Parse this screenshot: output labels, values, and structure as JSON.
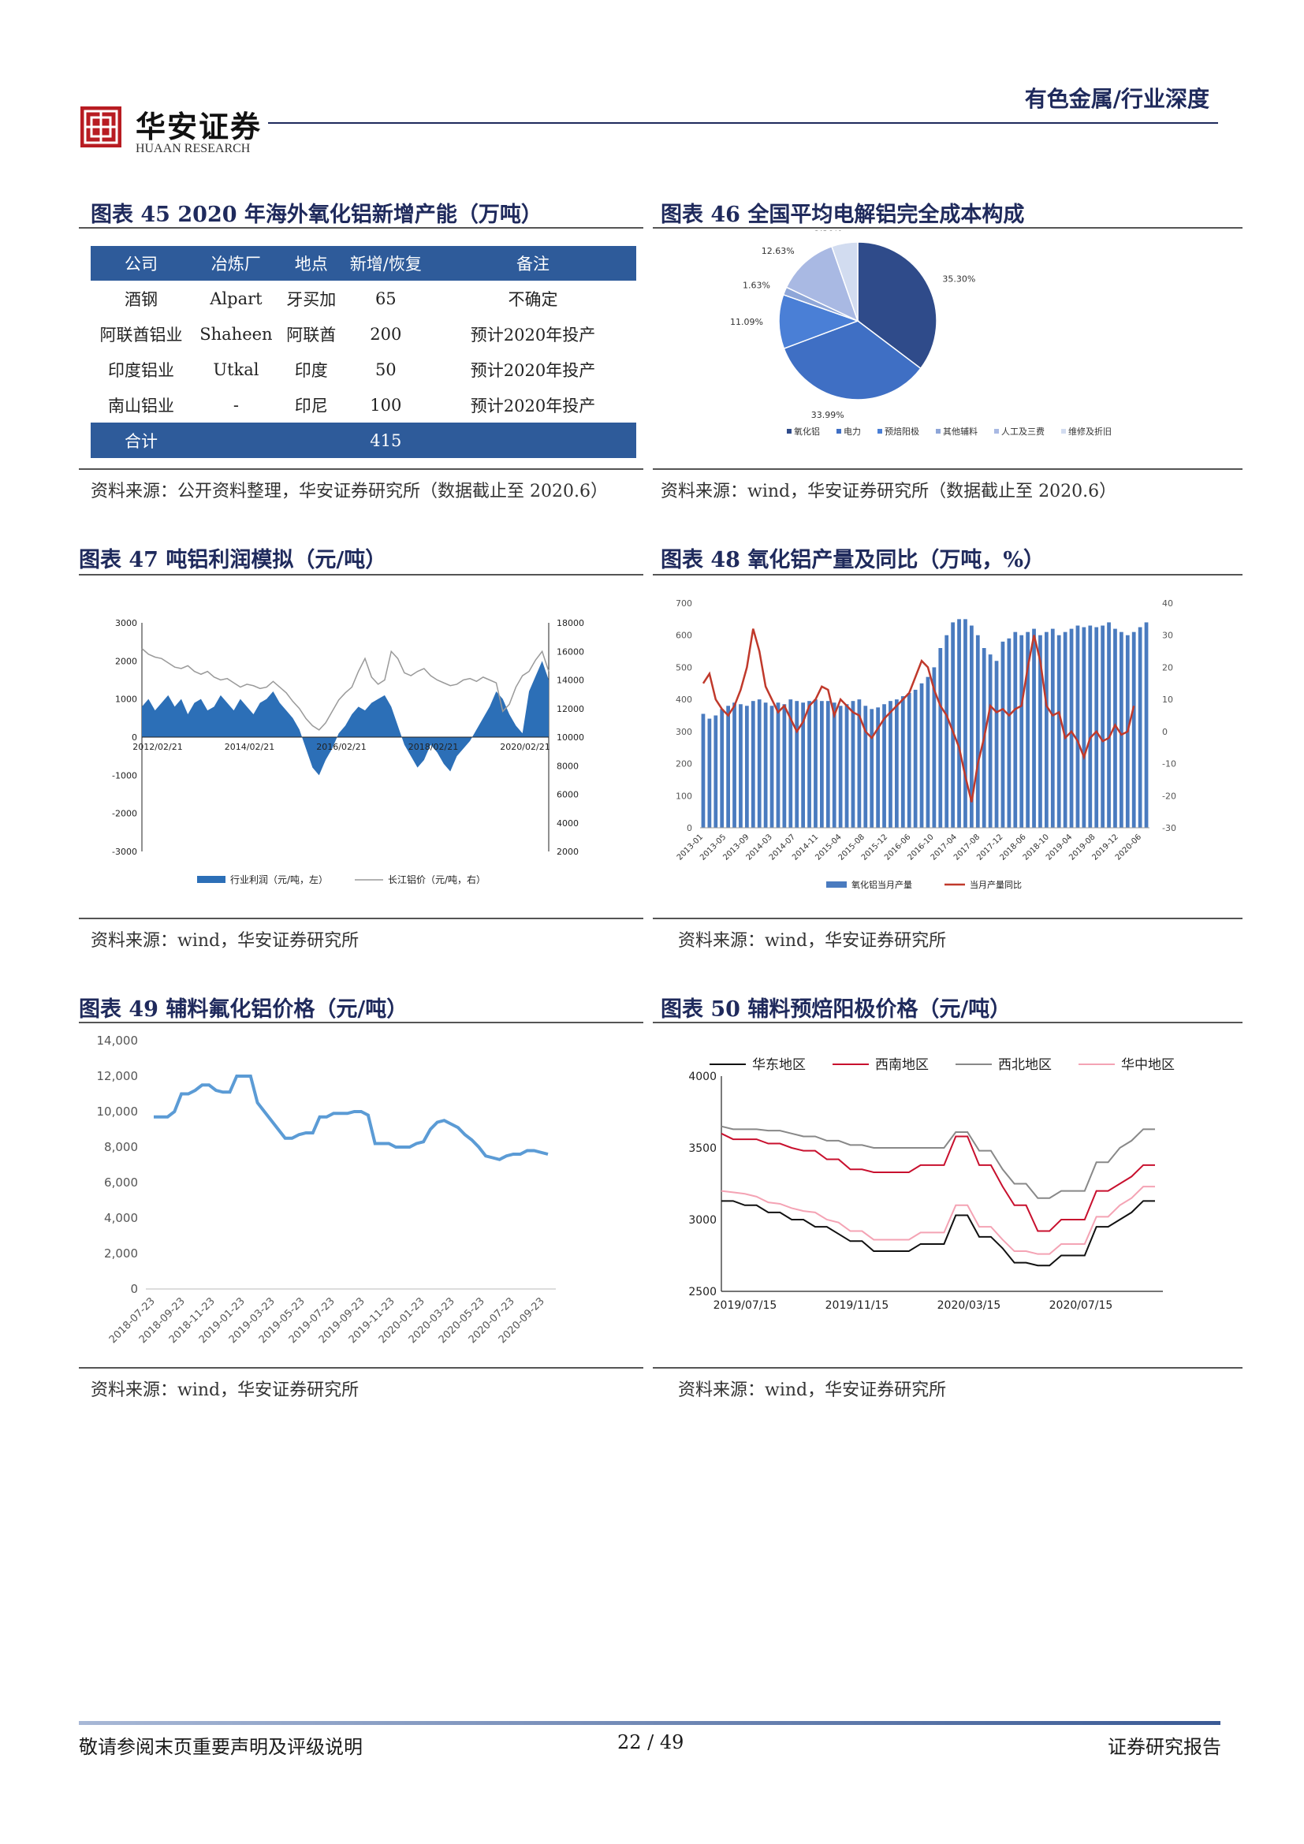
{
  "header": {
    "logo_cn": "华安证券",
    "logo_en": "HUAAN RESEARCH",
    "section": "有色金属/行业深度"
  },
  "fig45": {
    "title": "图表 45   2020 年海外氧化铝新增产能（万吨）",
    "columns": [
      "公司",
      "冶炼厂",
      "地点",
      "新增/恢复",
      "备注"
    ],
    "rows": [
      [
        "酒钢",
        "Alpart",
        "牙买加",
        "65",
        "不确定"
      ],
      [
        "阿联酋铝业",
        "Shaheen",
        "阿联酋",
        "200",
        "预计2020年投产"
      ],
      [
        "印度铝业",
        "Utkal",
        "印度",
        "50",
        "预计2020年投产"
      ],
      [
        "南山铝业",
        "-",
        "印尼",
        "100",
        "预计2020年投产"
      ]
    ],
    "total": [
      "合计",
      "",
      "",
      "415",
      ""
    ],
    "source": "资料来源：公开资料整理，华安证券研究所（数据截止至 2020.6）"
  },
  "fig46": {
    "title": "图表 46  全国平均电解铝完全成本构成",
    "source": "资料来源：wind，华安证券研究所（数据截止至 2020.6）",
    "chart_data": {
      "type": "pie",
      "categories": [
        "氧化铝",
        "电力",
        "预焙阳极",
        "其他辅料",
        "人工及三费",
        "维修及折旧"
      ],
      "values": [
        35.3,
        33.99,
        11.09,
        1.63,
        12.63,
        5.36
      ],
      "labels": [
        "35.30%",
        "33.99%",
        "11.09%",
        "1.63%",
        "12.63%",
        "5.36%"
      ],
      "colors": [
        "#2f4b8a",
        "#3f6fc4",
        "#4a7fd6",
        "#8ea6d8",
        "#a9b9e3",
        "#d2dcf0"
      ],
      "legend": "bottom"
    }
  },
  "fig47": {
    "title": "图表 47  吨铝利润模拟（元/吨）",
    "source": "资料来源：wind，华安证券研究所",
    "chart_data": {
      "type": "area",
      "x_ticks": [
        "2012/02/21",
        "2014/02/21",
        "2016/02/21",
        "2018/02/21",
        "2020/02/21"
      ],
      "y_left_ticks": [
        "3000",
        "2000",
        "1000",
        "0",
        "-1000",
        "-2000",
        "-3000"
      ],
      "y_right_ticks": [
        "18000",
        "16000",
        "14000",
        "12000",
        "10000",
        "8000",
        "6000",
        "4000",
        "2000"
      ],
      "ylim_left": [
        -3000,
        3000
      ],
      "ylim_right": [
        2000,
        18000
      ],
      "series": [
        {
          "name": "行业利润（元/吨，左）",
          "axis": "left",
          "color": "#2c6fb7",
          "values": [
            800,
            1000,
            700,
            900,
            1100,
            800,
            1000,
            600,
            900,
            1000,
            700,
            800,
            1100,
            900,
            700,
            1000,
            800,
            600,
            900,
            1000,
            1200,
            900,
            700,
            500,
            200,
            -300,
            -800,
            -1000,
            -600,
            -300,
            100,
            300,
            600,
            800,
            700,
            900,
            1000,
            1100,
            800,
            300,
            -200,
            -500,
            -800,
            -600,
            -200,
            -400,
            -700,
            -900,
            -500,
            -300,
            -100,
            200,
            500,
            800,
            1200,
            1000,
            600,
            300,
            100,
            1200,
            1600,
            2000,
            1500
          ]
        },
        {
          "name": "长江铝价（元/吨，右）",
          "axis": "right",
          "color": "#9a9a9a",
          "values": [
            16200,
            15800,
            15600,
            15500,
            15200,
            14900,
            14800,
            15000,
            14600,
            14400,
            14600,
            14200,
            14000,
            14100,
            13800,
            13500,
            13700,
            13600,
            13400,
            13500,
            13900,
            13500,
            13100,
            12500,
            12000,
            11300,
            10800,
            10500,
            11000,
            11800,
            12600,
            13100,
            13500,
            14600,
            15500,
            14200,
            13700,
            14000,
            16000,
            15500,
            14500,
            14300,
            14600,
            14800,
            14300,
            14000,
            13800,
            13600,
            13700,
            14000,
            14100,
            13900,
            14200,
            14000,
            13800,
            11800,
            12300,
            13500,
            14300,
            14600,
            15400,
            16000,
            14600
          ]
        }
      ],
      "legend": "bottom"
    }
  },
  "fig48": {
    "title": "图表 48  氧化铝产量及同比（万吨，%）",
    "source": "资料来源：wind，华安证券研究所",
    "chart_data": {
      "type": "bar",
      "x_ticks": [
        "2013-01",
        "2013-05",
        "2013-09",
        "2014-03",
        "2014-07",
        "2014-11",
        "2015-04",
        "2015-08",
        "2015-12",
        "2016-06",
        "2016-10",
        "2017-04",
        "2017-08",
        "2017-12",
        "2018-06",
        "2018-10",
        "2019-04",
        "2019-08",
        "2019-12",
        "2020-06"
      ],
      "y_left_ticks": [
        "700",
        "600",
        "500",
        "400",
        "300",
        "200",
        "100",
        "0"
      ],
      "y_right_ticks": [
        "40",
        "30",
        "20",
        "10",
        "0",
        "-10",
        "-20",
        "-30"
      ],
      "ylim_left": [
        0,
        700
      ],
      "ylim_right": [
        -30,
        40
      ],
      "series": [
        {
          "name": "氧化铝当月产量",
          "axis": "left",
          "color": "#4a7bbf",
          "values": [
            355,
            340,
            350,
            370,
            380,
            390,
            385,
            380,
            395,
            400,
            390,
            380,
            390,
            385,
            400,
            395,
            390,
            395,
            400,
            395,
            395,
            390,
            380,
            385,
            395,
            400,
            380,
            370,
            375,
            385,
            395,
            400,
            410,
            420,
            430,
            450,
            470,
            500,
            560,
            600,
            640,
            650,
            650,
            630,
            600,
            560,
            540,
            520,
            580,
            590,
            610,
            600,
            610,
            620,
            600,
            610,
            620,
            600,
            610,
            620,
            630,
            625,
            630,
            625,
            630,
            640,
            620,
            610,
            600,
            610,
            625,
            640
          ]
        },
        {
          "name": "当月产量同比",
          "axis": "right",
          "color": "#c0392b",
          "values": [
            15,
            18,
            10,
            7,
            5,
            8,
            13,
            20,
            32,
            25,
            14,
            10,
            6,
            8,
            4,
            0,
            3,
            8,
            10,
            14,
            13,
            5,
            10,
            8,
            6,
            5,
            0,
            -2,
            1,
            4,
            6,
            8,
            10,
            12,
            17,
            22,
            20,
            13,
            8,
            5,
            0,
            -5,
            -14,
            -22,
            -10,
            -2,
            8,
            6,
            7,
            5,
            7,
            8,
            20,
            30,
            22,
            8,
            5,
            6,
            -2,
            0,
            -3,
            -8,
            -2,
            0,
            -3,
            -2,
            2,
            -1,
            0,
            8
          ]
        }
      ],
      "legend": "bottom"
    }
  },
  "fig49": {
    "title": "图表 49  辅料氟化铝价格（元/吨）",
    "source": "资料来源：wind，华安证券研究所",
    "chart_data": {
      "type": "line",
      "x_ticks": [
        "2018-07-23",
        "2018-09-23",
        "2018-11-23",
        "2019-01-23",
        "2019-03-23",
        "2019-05-23",
        "2019-07-23",
        "2019-09-23",
        "2019-11-23",
        "2020-01-23",
        "2020-03-23",
        "2020-05-23",
        "2020-07-23",
        "2020-09-23"
      ],
      "y_ticks": [
        "14,000",
        "12,000",
        "10,000",
        "8,000",
        "6,000",
        "4,000",
        "2,000",
        "0"
      ],
      "ylim": [
        0,
        14000
      ],
      "series": [
        {
          "name": "",
          "color": "#5b9bd5",
          "values": [
            9700,
            9700,
            9700,
            10000,
            11000,
            11000,
            11200,
            11500,
            11500,
            11200,
            11100,
            11100,
            12000,
            12000,
            12000,
            10500,
            10000,
            9500,
            9000,
            8500,
            8500,
            8700,
            8800,
            8800,
            9700,
            9700,
            9900,
            9900,
            9900,
            10000,
            10000,
            9800,
            8200,
            8200,
            8200,
            8000,
            8000,
            8000,
            8200,
            8300,
            9000,
            9400,
            9500,
            9300,
            9100,
            8700,
            8400,
            8000,
            7500,
            7400,
            7300,
            7500,
            7600,
            7600,
            7800,
            7800,
            7700,
            7600
          ]
        }
      ]
    }
  },
  "fig50": {
    "title": "图表 50  辅料预焙阳极价格（元/吨）",
    "source": "资料来源：wind，华安证券研究所",
    "chart_data": {
      "type": "line",
      "x_ticks": [
        "2019/07/15",
        "2019/11/15",
        "2020/03/15",
        "2020/07/15"
      ],
      "y_ticks": [
        "4000",
        "3500",
        "3000",
        "2500"
      ],
      "ylim": [
        2500,
        4000
      ],
      "series": [
        {
          "name": "华东地区",
          "color": "#111111",
          "values": [
            3130,
            3130,
            3100,
            3100,
            3050,
            3050,
            3000,
            3000,
            2950,
            2950,
            2900,
            2850,
            2850,
            2780,
            2780,
            2780,
            2780,
            2830,
            2830,
            2830,
            3030,
            3030,
            2880,
            2880,
            2800,
            2700,
            2700,
            2680,
            2680,
            2750,
            2750,
            2750,
            2950,
            2950,
            3000,
            3050,
            3130,
            3130
          ]
        },
        {
          "name": "西南地区",
          "color": "#c8102e",
          "values": [
            3600,
            3560,
            3560,
            3560,
            3530,
            3530,
            3500,
            3480,
            3480,
            3420,
            3420,
            3350,
            3350,
            3330,
            3330,
            3330,
            3330,
            3380,
            3380,
            3380,
            3580,
            3580,
            3380,
            3380,
            3230,
            3100,
            3100,
            2920,
            2920,
            3000,
            3000,
            3000,
            3200,
            3200,
            3250,
            3300,
            3380,
            3380
          ]
        },
        {
          "name": "西北地区",
          "color": "#888888",
          "values": [
            3650,
            3630,
            3630,
            3630,
            3620,
            3620,
            3600,
            3580,
            3580,
            3550,
            3550,
            3520,
            3520,
            3500,
            3500,
            3500,
            3500,
            3500,
            3500,
            3500,
            3610,
            3610,
            3480,
            3480,
            3350,
            3250,
            3250,
            3150,
            3150,
            3200,
            3200,
            3200,
            3400,
            3400,
            3500,
            3550,
            3630,
            3630
          ]
        },
        {
          "name": "华中地区",
          "color": "#f4a3b4",
          "values": [
            3200,
            3190,
            3180,
            3160,
            3120,
            3110,
            3080,
            3060,
            3050,
            3000,
            2980,
            2920,
            2920,
            2860,
            2860,
            2860,
            2860,
            2910,
            2910,
            2910,
            3100,
            3100,
            2950,
            2950,
            2860,
            2780,
            2780,
            2760,
            2760,
            2830,
            2830,
            2830,
            3020,
            3020,
            3100,
            3150,
            3230,
            3230
          ]
        }
      ],
      "legend": "top"
    }
  },
  "footer": {
    "left": "敬请参阅末页重要声明及评级说明",
    "center": "22 / 49",
    "right": "证券研究报告"
  }
}
